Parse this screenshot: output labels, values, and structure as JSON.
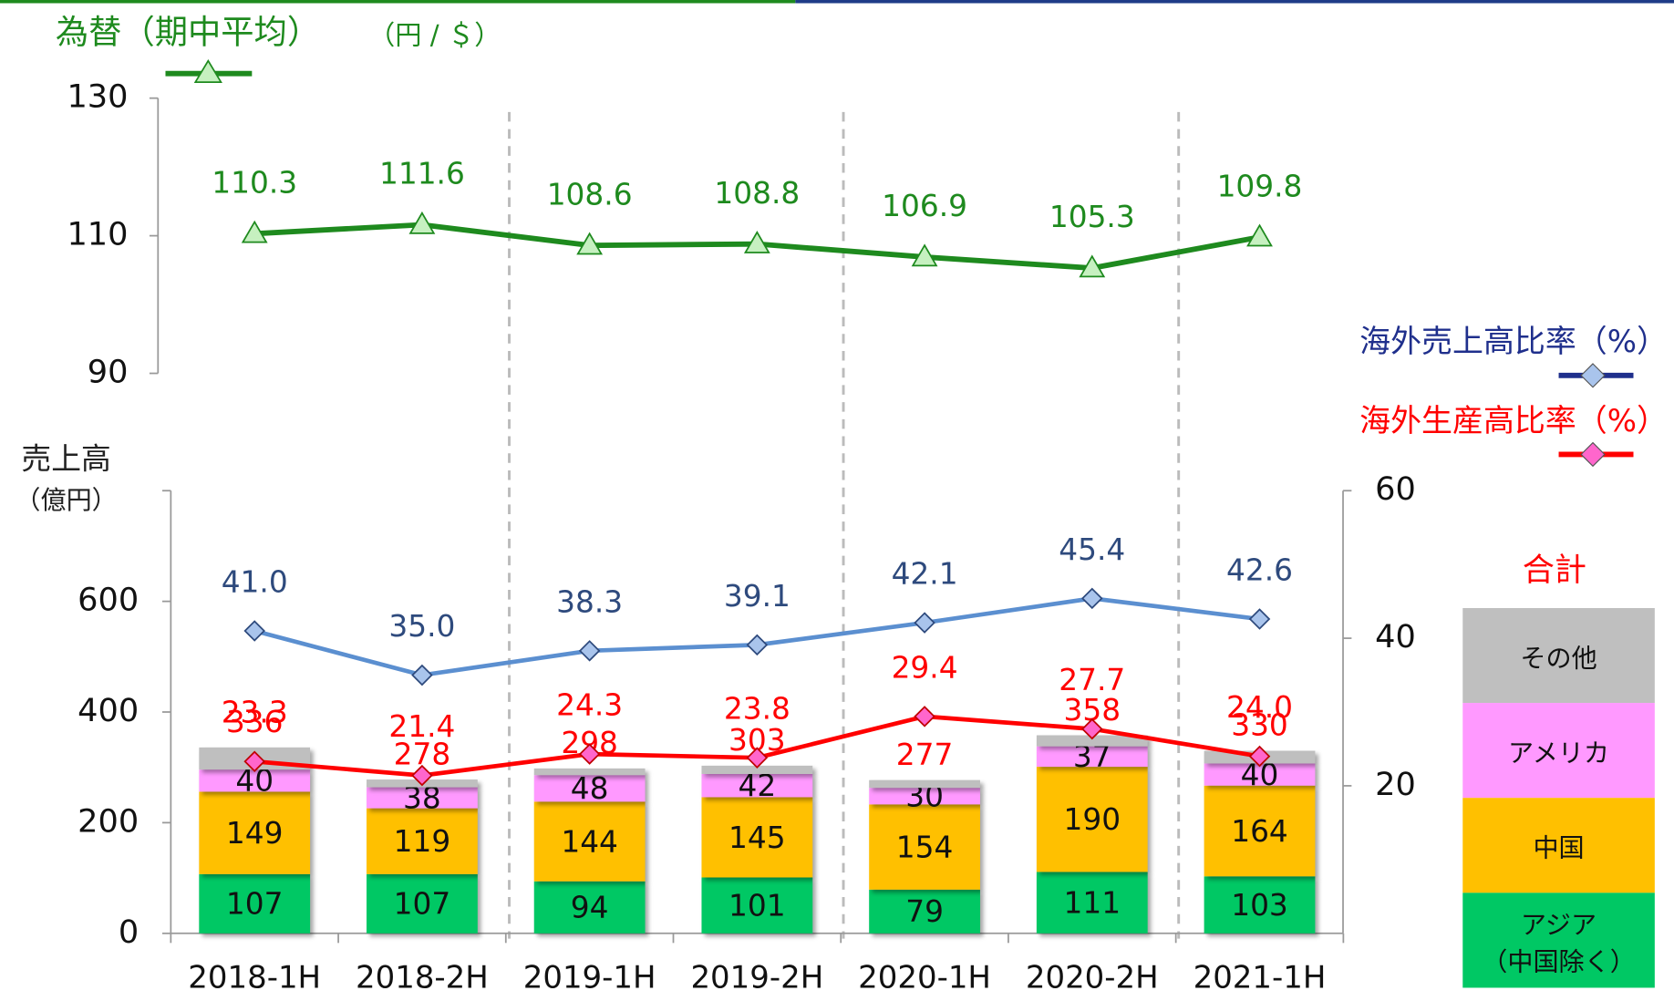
{
  "chart_data": [
    {
      "type": "line",
      "title": "為替（期中平均）",
      "unit": "（円 / ＄）",
      "categories": [
        "2018-1H",
        "2018-2H",
        "2019-1H",
        "2019-2H",
        "2020-1H",
        "2020-2H",
        "2021-1H"
      ],
      "values": [
        110.3,
        111.6,
        108.6,
        108.8,
        106.9,
        105.3,
        109.8
      ],
      "color": "#1e8a1e",
      "ylim": [
        90,
        130
      ],
      "yticks": [
        90,
        110,
        130
      ]
    },
    {
      "type": "bar",
      "y_label": "売上高",
      "y_unit": "（億円）",
      "total_label": "合計",
      "categories": [
        "2018-1H",
        "2018-2H",
        "2019-1H",
        "2019-2H",
        "2020-1H",
        "2020-2H",
        "2021-1H"
      ],
      "series": [
        {
          "name": "アジア\n（中国除く）",
          "type": "bar",
          "color": "#00c864",
          "labeled": true,
          "values": [
            107,
            107,
            94,
            101,
            79,
            111,
            103
          ]
        },
        {
          "name": "中国",
          "type": "bar",
          "color": "#ffc000",
          "labeled": true,
          "values": [
            149,
            119,
            144,
            145,
            154,
            190,
            164
          ]
        },
        {
          "name": "アメリカ",
          "type": "bar",
          "color": "#ff99ff",
          "labeled": true,
          "values": [
            40,
            38,
            48,
            42,
            30,
            37,
            40
          ]
        },
        {
          "name": "その他",
          "type": "bar",
          "color": "#bfbfbf",
          "labeled": false,
          "values": [
            40,
            14,
            12,
            15,
            14,
            20,
            23
          ]
        },
        {
          "name": "海外売上高比率（%）",
          "type": "line",
          "axis": "y2",
          "color": "#5b8fd0",
          "label_color": "#2e4a7d",
          "values": [
            41,
            35,
            38.3,
            39.1,
            42.1,
            45.4,
            42.6
          ],
          "value_labels": [
            "41.0",
            "35.0",
            "38.3",
            "39.1",
            "42.1",
            "45.4",
            "42.6"
          ]
        },
        {
          "name": "海外生産高比率（%）",
          "type": "line",
          "axis": "y2",
          "color": "#ff0000",
          "label_color": "#ff0000",
          "values": [
            23.3,
            21.4,
            24.3,
            23.8,
            29.4,
            27.7,
            24
          ],
          "value_labels": [
            "23.3",
            "21.4",
            "24.3",
            "23.8",
            "29.4",
            "27.7",
            "24.0"
          ]
        }
      ],
      "totals": [
        336,
        278,
        298,
        303,
        277,
        358,
        330
      ],
      "ylim": [
        0,
        800
      ],
      "yticks": [
        0,
        200,
        400,
        600
      ],
      "y2lim": [
        0,
        60
      ],
      "y2ticks": [
        20,
        40,
        60
      ]
    }
  ]
}
